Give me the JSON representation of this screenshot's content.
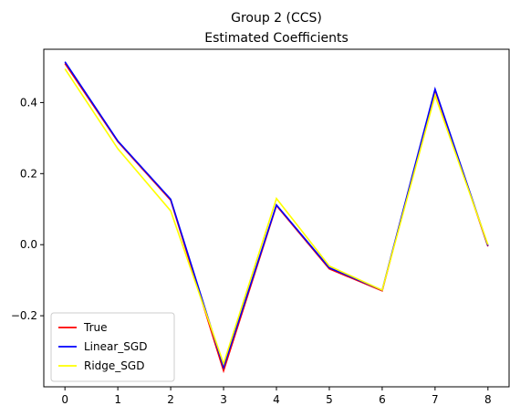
{
  "chart_data": {
    "type": "line",
    "title": [
      "Group 2 (CCS)",
      "Estimated Coefficients"
    ],
    "xlabel": "",
    "ylabel": "",
    "x": [
      0,
      1,
      2,
      3,
      4,
      5,
      6,
      7,
      8
    ],
    "xlim": [
      -0.4,
      8.4
    ],
    "ylim": [
      -0.4,
      0.55
    ],
    "xticks": [
      0,
      1,
      2,
      3,
      4,
      5,
      6,
      7,
      8
    ],
    "yticks": [
      -0.2,
      0.0,
      0.2,
      0.4
    ],
    "ytick_labels": [
      "−0.2",
      "0.0",
      "0.2",
      "0.4"
    ],
    "grid": false,
    "legend_position": "lower-left",
    "series": [
      {
        "name": "True",
        "color": "#ff0000",
        "values": [
          0.51,
          0.29,
          0.125,
          -0.355,
          0.11,
          -0.068,
          -0.13,
          0.435,
          -0.005
        ]
      },
      {
        "name": "Linear_SGD",
        "color": "#0000ff",
        "values": [
          0.515,
          0.292,
          0.128,
          -0.345,
          0.112,
          -0.065,
          -0.128,
          0.438,
          -0.003
        ]
      },
      {
        "name": "Ridge_SGD",
        "color": "#ffff00",
        "values": [
          0.495,
          0.27,
          0.095,
          -0.335,
          0.13,
          -0.06,
          -0.128,
          0.42,
          0.0
        ]
      }
    ]
  }
}
